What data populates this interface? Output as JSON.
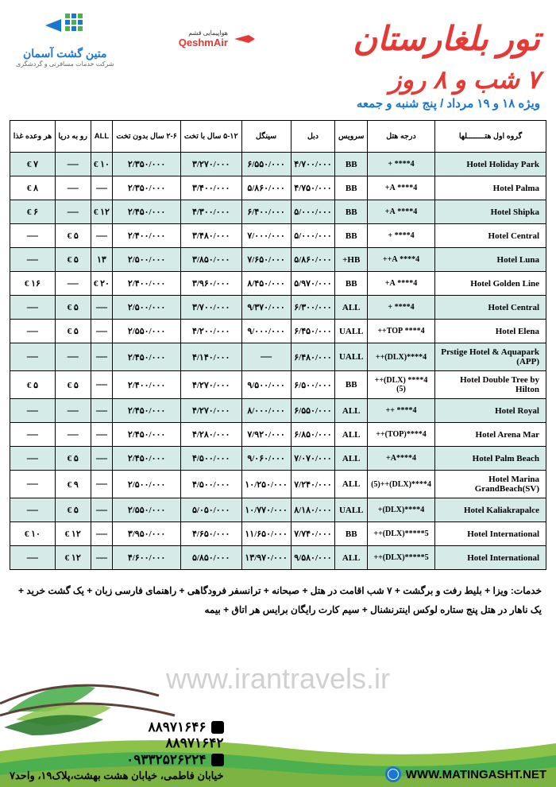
{
  "header": {
    "main_title": "تور بلغارستان",
    "sub_title": "۷ شب و ۸ روز",
    "date_line": "ویژه ۱۸ و ۱۹ مرداد / پنج شنبه و جمعه",
    "airline_name": "QeshmAir",
    "airline_persian": "هواپیمایی قشم",
    "company_name": "متین گشت آسمان",
    "company_sub": "شرکت خدمات مسافرتی و گردشگری"
  },
  "table": {
    "columns": [
      "گروه اول هتــــــــلها",
      "درجه هتل",
      "سرویس",
      "دبل",
      "سینگل",
      "۵-۱۲ سال با تخت",
      "۲-۶ سال بدون تخت",
      "ALL",
      "رو به دریا",
      "هر وعده غذا"
    ],
    "rows": [
      {
        "hotel": "Hotel  Holiday Park",
        "rating": "4**** +",
        "service": "BB",
        "dbl": "۴/۷۰۰/۰۰۰",
        "sgl": "۶/۵۵۰/۰۰۰",
        "c1": "۳/۲۷۰/۰۰۰",
        "c2": "۲/۳۵۰/۰۰۰",
        "all": "۱۰ €",
        "sea": "—",
        "meal": "۷ €"
      },
      {
        "hotel": "Hotel  Palma",
        "rating": "4**** A+",
        "service": "BB",
        "dbl": "۴/۷۵۰/۰۰۰",
        "sgl": "۵/۸۶۰/۰۰۰",
        "c1": "۳/۴۰۰/۰۰۰",
        "c2": "۲/۳۵۰/۰۰۰",
        "all": "—",
        "sea": "—",
        "meal": "۸ €"
      },
      {
        "hotel": "Hotel  Shipka",
        "rating": "4**** A+",
        "service": "BB",
        "dbl": "۵/۰۰۰/۰۰۰",
        "sgl": "۶/۴۰۰/۰۰۰",
        "c1": "۴/۳۰۰/۰۰۰",
        "c2": "۲/۴۵۰/۰۰۰",
        "all": "۱۲ €",
        "sea": "—",
        "meal": "۶ €"
      },
      {
        "hotel": "Hotel  Central",
        "rating": "4**** +",
        "service": "BB",
        "dbl": "۵/۰۰۰/۰۰۰",
        "sgl": "۷/۰۰۰/۰۰۰",
        "c1": "۳/۴۸۰/۰۰۰",
        "c2": "۲/۴۰۰/۰۰۰",
        "all": "—",
        "sea": "۵ €",
        "meal": "—"
      },
      {
        "hotel": "Hotel  Luna",
        "rating": "4**** A++",
        "service": "HB+",
        "dbl": "۵/۸۶۰/۰۰۰",
        "sgl": "۷/۶۵۰/۰۰۰",
        "c1": "۳/۸۵۰/۰۰۰",
        "c2": "۲/۵۰۰/۰۰۰",
        "all": "۱۳",
        "sea": "۵ €",
        "meal": "—"
      },
      {
        "hotel": "Hotel  Golden Line",
        "rating": "4**** A+",
        "service": "BB",
        "dbl": "۵/۹۷۰/۰۰۰",
        "sgl": "۸/۴۵۰/۰۰۰",
        "c1": "۳/۹۶۰/۰۰۰",
        "c2": "۲/۴۰۰/۰۰۰",
        "all": "۲۰ €",
        "sea": "—",
        "meal": "۱۶ €"
      },
      {
        "hotel": "Hotel  Central",
        "rating": "4**** +",
        "service": "ALL",
        "dbl": "۶/۳۰۰/۰۰۰",
        "sgl": "۹/۳۷۰/۰۰۰",
        "c1": "۳/۷۰۰/۰۰۰",
        "c2": "۲/۵۰۰/۰۰۰",
        "all": "—",
        "sea": "۵ €",
        "meal": "—"
      },
      {
        "hotel": "Hotel  Elena",
        "rating": "4**** TOP++",
        "service": "UALL",
        "dbl": "۶/۴۵۰/۰۰۰",
        "sgl": "۹/۰۰۰/۰۰۰",
        "c1": "۴/۲۰۰/۰۰۰",
        "c2": "۲/۵۵۰/۰۰۰",
        "all": "—",
        "sea": "۵ €",
        "meal": "—"
      },
      {
        "hotel": "Prstige  Hotel & Aquapark (APP)",
        "rating": "4****(DLX)++",
        "service": "UALL",
        "dbl": "۶/۴۸۰/۰۰۰",
        "sgl": "—",
        "c1": "۴/۱۴۰/۰۰۰",
        "c2": "۲/۴۵۰/۰۰۰",
        "all": "—",
        "sea": "—",
        "meal": "—"
      },
      {
        "hotel": "Hotel  Double Tree by Hilton",
        "rating": "4**** (DLX)++(5)",
        "service": "BB",
        "dbl": "۶/۵۰۰/۰۰۰",
        "sgl": "۹/۵۰۰/۰۰۰",
        "c1": "۴/۲۷۰/۰۰۰",
        "c2": "۲/۴۰۰/۰۰۰",
        "all": "—",
        "sea": "۵ €",
        "meal": "۵ €"
      },
      {
        "hotel": "Hotel  Royal",
        "rating": "4**** ++",
        "service": "ALL",
        "dbl": "۶/۵۵۰/۰۰۰",
        "sgl": "۸/۰۰۰/۰۰۰",
        "c1": "۴/۲۷۰/۰۰۰",
        "c2": "۲/۴۵۰/۰۰۰",
        "all": "—",
        "sea": "—",
        "meal": "—"
      },
      {
        "hotel": "Hotel  Arena Mar",
        "rating": "4****(TOP)++",
        "service": "ALL",
        "dbl": "۶/۸۵۰/۰۰۰",
        "sgl": "۷/۹۲۰/۰۰۰",
        "c1": "۴/۲۸۰/۰۰۰",
        "c2": "۲/۴۵۰/۰۰۰",
        "all": "—",
        "sea": "—",
        "meal": "—"
      },
      {
        "hotel": "Hotel  Palm  Beach",
        "rating": "4****A+",
        "service": "ALL",
        "dbl": "۷/۰۷۰/۰۰۰",
        "sgl": "۹/۰۶۰/۰۰۰",
        "c1": "۴/۵۰۰/۰۰۰",
        "c2": "۲/۴۵۰/۰۰۰",
        "all": "—",
        "sea": "۵ €",
        "meal": "—"
      },
      {
        "hotel": "Hotel  Marina GrandBeach(SV)",
        "rating": "4****(DLX)++(5)",
        "service": "ALL",
        "dbl": "۷/۲۴۰/۰۰۰",
        "sgl": "۱۰/۲۵۰/۰۰۰",
        "c1": "۴/۵۰۰/۰۰۰",
        "c2": "۲/۵۰۰/۰۰۰",
        "all": "—",
        "sea": "۹ €",
        "meal": "—"
      },
      {
        "hotel": "Hotel  Kaliakrapalce",
        "rating": "4****(DLX)+",
        "service": "UALL",
        "dbl": "۸/۱۸۰/۰۰۰",
        "sgl": "۱۰/۷۷۰/۰۰۰",
        "c1": "۵/۰۵۰/۰۰۰",
        "c2": "۲/۵۵۰/۰۰۰",
        "all": "—",
        "sea": "۵ €",
        "meal": "—"
      },
      {
        "hotel": "Hotel  International",
        "rating": "5*****(DLX)++",
        "service": "BB",
        "dbl": "۷/۷۴۰/۰۰۰",
        "sgl": "۱۱/۶۵۰/۰۰۰",
        "c1": "۴/۶۵۰/۰۰۰",
        "c2": "۳/۹۵۰/۰۰۰",
        "all": "—",
        "sea": "۱۲ €",
        "meal": "۱۰ €"
      },
      {
        "hotel": "Hotel  International",
        "rating": "5*****(DLX)++",
        "service": "ALL",
        "dbl": "۹/۵۸۰/۰۰۰",
        "sgl": "۱۳/۹۷۰/۰۰۰",
        "c1": "۵/۸۵۰/۰۰۰",
        "c2": "۴/۶۰۰/۰۰۰",
        "all": "—",
        "sea": "۱۲ €",
        "meal": "—"
      }
    ]
  },
  "services_text": "خدمات: ویزا + بلیط رفت و برگشت + ۷ شب اقامت در هتل + صبحانه + ترانسفر فرودگاهی + راهنمای فارسی زبان + یک گشت خرید + یک ناهار در هتل پنج ستاره لوکس اینترنشنال + سیم کارت رایگان برایس هر اتاق + بیمه",
  "watermark": "www.irantravels.ir",
  "footer": {
    "website": "WWW.MATINGASHT.NET",
    "phone1": "۸۸۹۷۱۶۴۶",
    "phone2": "۸۸۹۷۱۶۴۲",
    "mobile": "۰۹۳۳۲۵۲۶۲۲۴",
    "address": "خیابان فاطمی، خیابان هشت بهشت،پلاک۱۹، واحد۷"
  },
  "colors": {
    "title_red": "#e53935",
    "blue": "#1976d2",
    "row_alt": "#d4ebe8",
    "green1": "#4caf50",
    "green2": "#8bc34a",
    "green3": "#2e7d32"
  }
}
